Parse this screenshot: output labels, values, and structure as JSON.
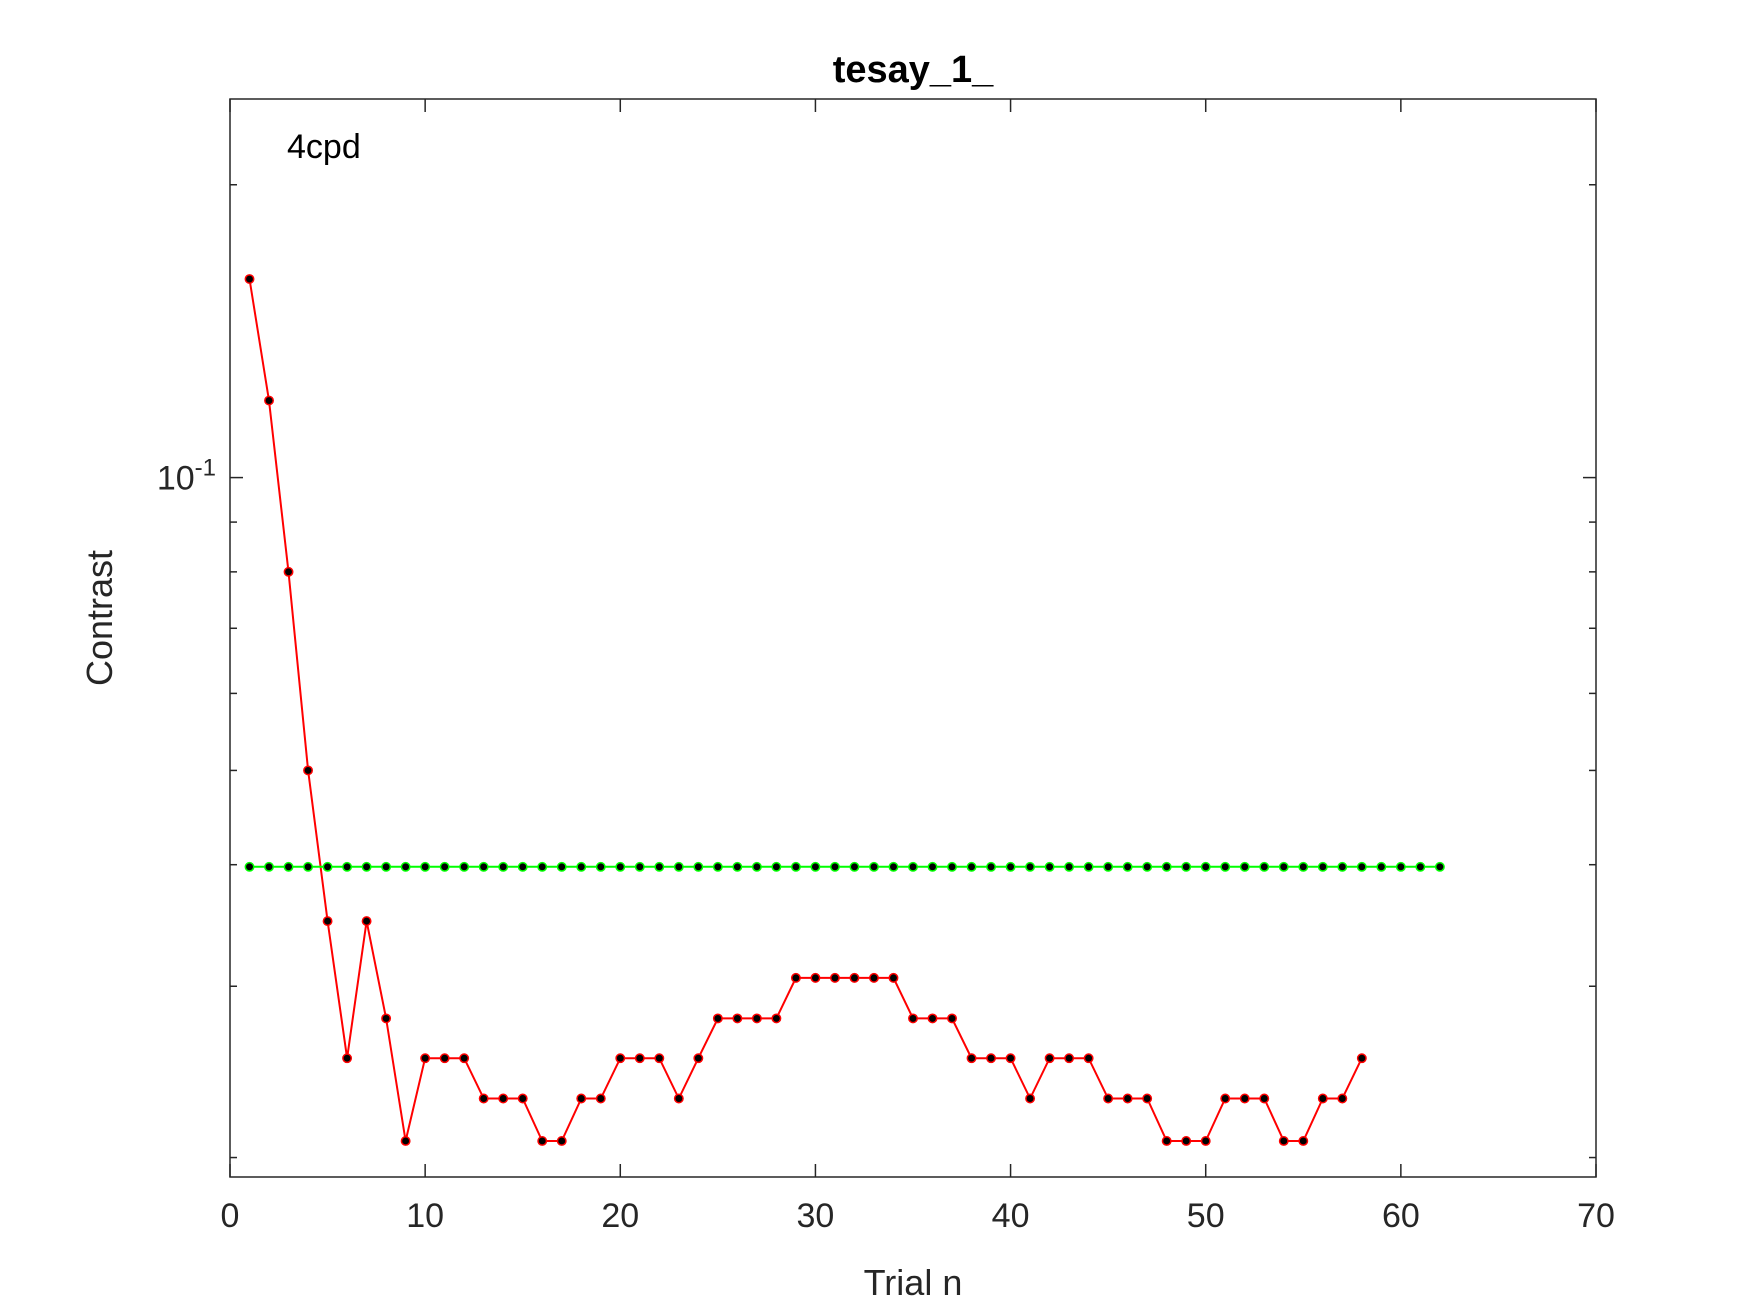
{
  "chart_data": {
    "type": "line",
    "title": "tesay_1_",
    "xlabel": "Trial n",
    "ylabel": "Contrast",
    "annotation": "4cpd",
    "xlim": [
      0,
      70
    ],
    "ylim": [
      0.0191,
      0.245
    ],
    "yscale": "log",
    "xticks": [
      0,
      10,
      20,
      30,
      40,
      50,
      60,
      70
    ],
    "yticks": [
      0.1
    ],
    "ytick_labels": [
      {
        "base": "10",
        "exp": "-1"
      }
    ],
    "grid": false,
    "series": [
      {
        "color": "#ff0000",
        "marker_color": "#000000",
        "x": [
          1,
          2,
          3,
          4,
          5,
          6,
          7,
          8,
          9,
          10,
          11,
          12,
          13,
          14,
          15,
          16,
          17,
          18,
          19,
          20,
          21,
          22,
          23,
          24,
          25,
          26,
          27,
          28,
          29,
          30,
          31,
          32,
          33,
          34,
          35,
          36,
          37,
          38,
          39,
          40,
          41,
          42,
          43,
          44,
          45,
          46,
          47,
          48,
          49,
          50,
          51,
          52,
          53,
          54,
          55,
          56,
          57,
          58
        ],
        "y": [
          0.16,
          0.12,
          0.08,
          0.05,
          0.035,
          0.0253,
          0.035,
          0.0278,
          0.0208,
          0.0253,
          0.0253,
          0.0253,
          0.023,
          0.023,
          0.023,
          0.0208,
          0.0208,
          0.023,
          0.023,
          0.0253,
          0.0253,
          0.0253,
          0.023,
          0.0253,
          0.0278,
          0.0278,
          0.0278,
          0.0278,
          0.0306,
          0.0306,
          0.0306,
          0.0306,
          0.0306,
          0.0306,
          0.0278,
          0.0278,
          0.0278,
          0.0253,
          0.0253,
          0.0253,
          0.023,
          0.0253,
          0.0253,
          0.0253,
          0.023,
          0.023,
          0.023,
          0.0208,
          0.0208,
          0.0208,
          0.023,
          0.023,
          0.023,
          0.0208,
          0.0208,
          0.023,
          0.023,
          0.0253
        ]
      },
      {
        "color": "#00ff00",
        "marker_color": "#000000",
        "x": [
          1,
          2,
          3,
          4,
          5,
          6,
          7,
          8,
          9,
          10,
          11,
          12,
          13,
          14,
          15,
          16,
          17,
          18,
          19,
          20,
          21,
          22,
          23,
          24,
          25,
          26,
          27,
          28,
          29,
          30,
          31,
          32,
          33,
          34,
          35,
          36,
          37,
          38,
          39,
          40,
          41,
          42,
          43,
          44,
          45,
          46,
          47,
          48,
          49,
          50,
          51,
          52,
          53,
          54,
          55,
          56,
          57,
          58,
          59,
          60,
          61,
          62
        ],
        "y": [
          0.0398,
          0.0398,
          0.0398,
          0.0398,
          0.0398,
          0.0398,
          0.0398,
          0.0398,
          0.0398,
          0.0398,
          0.0398,
          0.0398,
          0.0398,
          0.0398,
          0.0398,
          0.0398,
          0.0398,
          0.0398,
          0.0398,
          0.0398,
          0.0398,
          0.0398,
          0.0398,
          0.0398,
          0.0398,
          0.0398,
          0.0398,
          0.0398,
          0.0398,
          0.0398,
          0.0398,
          0.0398,
          0.0398,
          0.0398,
          0.0398,
          0.0398,
          0.0398,
          0.0398,
          0.0398,
          0.0398,
          0.0398,
          0.0398,
          0.0398,
          0.0398,
          0.0398,
          0.0398,
          0.0398,
          0.0398,
          0.0398,
          0.0398,
          0.0398,
          0.0398,
          0.0398,
          0.0398,
          0.0398,
          0.0398,
          0.0398,
          0.0398,
          0.0398,
          0.0398,
          0.0398,
          0.0398
        ]
      }
    ]
  }
}
